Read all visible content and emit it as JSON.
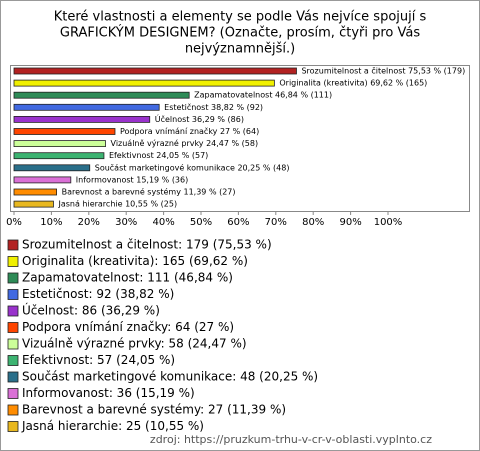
{
  "chart_data": {
    "type": "bar",
    "orientation": "horizontal",
    "title": [
      "Které vlastnosti a elementy se podle Vás nejvíce spojují s",
      "GRAFICKÝM DESIGNEM? (Označte, prosím, čtyři pro Vás",
      "nejvýznamnější.)"
    ],
    "values": [
      75.53,
      69.62,
      46.84,
      38.82,
      36.29,
      27,
      24.47,
      24.05,
      20.25,
      15.19,
      11.39,
      10.55
    ],
    "value_labels": [
      "Srozumitelnost a čitelnost 75,53 % (179)",
      "Originalita (kreativita) 69,62 % (165)",
      "Zapamatovatelnost 46,84 % (111)",
      "Estetičnost 38,82 % (92)",
      "Účelnost 36,29 % (86)",
      "Podpora vnímání značky 27 % (64)",
      "Vizuálně výrazné prvky 24,47 % (58)",
      "Efektivnost 24,05 % (57)",
      "Součást marketingové komunikace 20,25 % (48)",
      "Informovanost 15,19 % (36)",
      "Barevnost a barevné systémy 11,39 % (27)",
      "Jasná hierarchie 10,55 % (25)"
    ],
    "legend": [
      "Srozumitelnost a čitelnost: 179 (75,53 %)",
      "Originalita (kreativita): 165 (69,62 %)",
      "Zapamatovatelnost: 111 (46,84 %)",
      "Estetičnost: 92 (38,82 %)",
      "Účelnost: 86 (36,29 %)",
      "Podpora vnímání značky: 64 (27 %)",
      "Vizuálně výrazné prvky: 58 (24,47 %)",
      "Efektivnost: 57 (24,05 %)",
      "Součást marketingové komunikace: 48 (20,25 %)",
      "Informovanost: 36 (15,19 %)",
      "Barevnost a barevné systémy: 27 (11,39 %)",
      "Jasná hierarchie: 25 (10,55 %)"
    ],
    "colors": [
      "#b22222",
      "#f0f000",
      "#2e8b57",
      "#4169e1",
      "#9932cc",
      "#ff4500",
      "#ccff99",
      "#3cb371",
      "#2a6f8a",
      "#da70d6",
      "#ff8c00",
      "#e8b820"
    ],
    "xlim": [
      0,
      100
    ],
    "xticks": [
      {
        "value": 0,
        "label": "0%"
      },
      {
        "value": 10,
        "label": "10%"
      },
      {
        "value": 20,
        "label": "20%"
      },
      {
        "value": 30,
        "label": "30%"
      },
      {
        "value": 40,
        "label": "40%"
      },
      {
        "value": 50,
        "label": "50%"
      },
      {
        "value": 60,
        "label": "60%"
      },
      {
        "value": 70,
        "label": "70%"
      },
      {
        "value": 80,
        "label": "80%"
      },
      {
        "value": 90,
        "label": "90%"
      },
      {
        "value": 100,
        "label": "100%"
      }
    ],
    "source": "zdroj: https://pruzkum-trhu-v-cr-v-oblasti.vyplnto.cz"
  }
}
